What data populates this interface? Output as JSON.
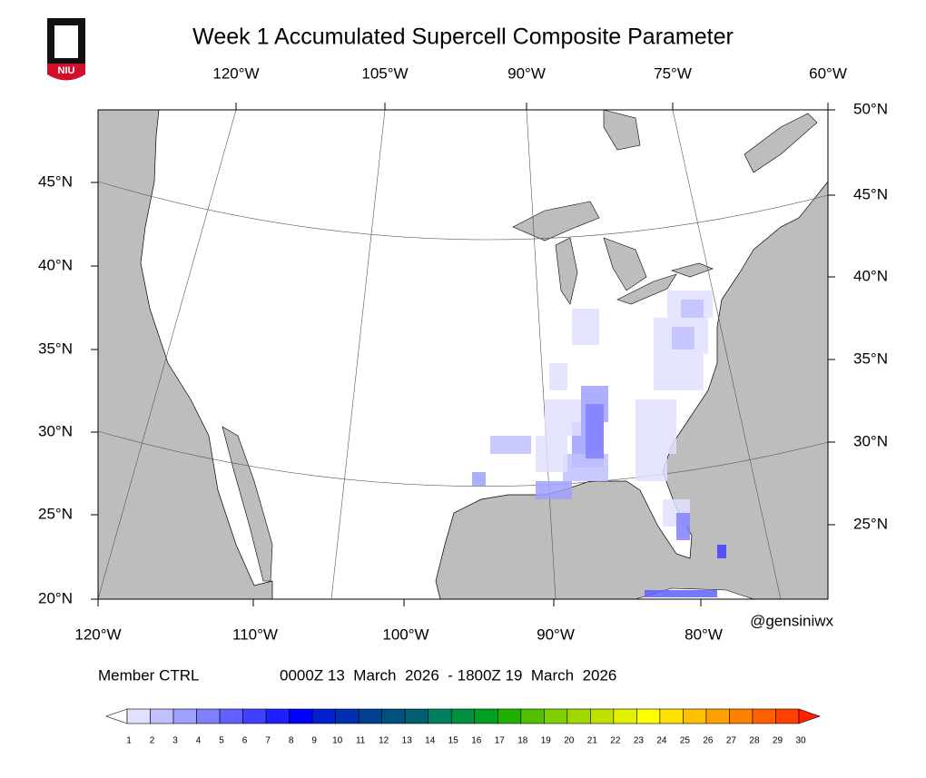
{
  "logo": "NIU",
  "title": "Week 1 Accumulated Supercell Composite Parameter",
  "map": {
    "lon_top": [
      "120°W",
      "105°W",
      "90°W",
      "75°W",
      "60°W"
    ],
    "lon_bottom": [
      "120°W",
      "110°W",
      "100°W",
      "90°W",
      "80°W"
    ],
    "lat_left": [
      "45°N",
      "40°N",
      "35°N",
      "30°N",
      "25°N",
      "20°N"
    ],
    "lat_right": [
      "50°N",
      "45°N",
      "40°N",
      "35°N",
      "30°N",
      "25°N"
    ]
  },
  "credit": "@gensiniwx",
  "member": "Member CTRL",
  "period": "0000Z 13  March  2026  - 1800Z 19  March  2026",
  "colorbar": {
    "levels": [
      1,
      2,
      3,
      4,
      5,
      6,
      7,
      8,
      9,
      10,
      11,
      12,
      13,
      14,
      15,
      16,
      17,
      18,
      19,
      20,
      21,
      22,
      23,
      24,
      25,
      26,
      27,
      28,
      29,
      30
    ],
    "colors": [
      "#ffffff",
      "#e0e0ff",
      "#c0c0ff",
      "#a0a0ff",
      "#8080ff",
      "#6060ff",
      "#4040ff",
      "#2020ff",
      "#0000ff",
      "#0020d0",
      "#0030b0",
      "#004090",
      "#005080",
      "#006070",
      "#008060",
      "#009040",
      "#00a020",
      "#20b000",
      "#50c000",
      "#80d000",
      "#a0d800",
      "#c0e000",
      "#e0f000",
      "#ffff00",
      "#ffe000",
      "#ffc000",
      "#ffa000",
      "#ff8000",
      "#ff6000",
      "#ff4000",
      "#ff2000"
    ]
  }
}
